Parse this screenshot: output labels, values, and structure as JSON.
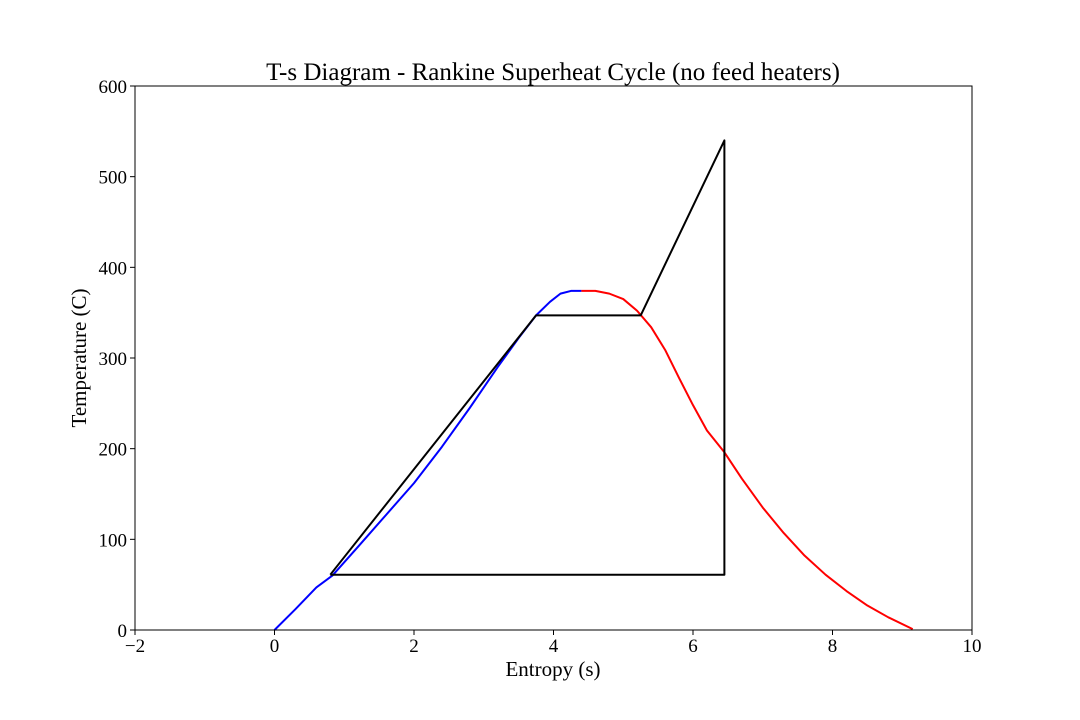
{
  "chart_data": {
    "type": "line",
    "title": "T-s Diagram - Rankine Superheat Cycle (no feed heaters)",
    "xlabel": "Entropy (s)",
    "ylabel": "Temperature (C)",
    "xlim": [
      -2,
      10
    ],
    "ylim": [
      0,
      600
    ],
    "xticks": [
      -2,
      0,
      2,
      4,
      6,
      8,
      10
    ],
    "xtick_labels": [
      "−2",
      "0",
      "2",
      "4",
      "6",
      "8",
      "10"
    ],
    "yticks": [
      0,
      100,
      200,
      300,
      400,
      500,
      600
    ],
    "ytick_labels": [
      "0",
      "100",
      "200",
      "300",
      "400",
      "500",
      "600"
    ],
    "grid": false,
    "series": [
      {
        "color": "#0000ff",
        "x": [
          0.0,
          0.3,
          0.6,
          0.83,
          1.2,
          1.6,
          2.0,
          2.4,
          2.8,
          3.2,
          3.5,
          3.75,
          3.95,
          4.1,
          4.25,
          4.4
        ],
        "y": [
          0,
          23,
          47,
          60,
          92,
          127,
          162,
          202,
          245,
          290,
          322,
          347,
          362,
          371,
          374,
          374
        ]
      },
      {
        "color": "#ff0000",
        "x": [
          4.4,
          4.6,
          4.8,
          5.0,
          5.2,
          5.4,
          5.6,
          5.8,
          6.0,
          6.2,
          6.45,
          6.7,
          7.0,
          7.3,
          7.6,
          7.9,
          8.2,
          8.5,
          8.8,
          9.15
        ],
        "y": [
          374,
          374,
          371,
          365,
          352,
          334,
          309,
          278,
          248,
          220,
          196,
          167,
          135,
          107,
          82,
          61,
          43,
          27,
          14,
          1
        ]
      },
      {
        "color": "#000000",
        "x": [
          0.8,
          6.45,
          6.45,
          5.25,
          3.75,
          0.8
        ],
        "y": [
          61,
          61,
          540,
          347,
          347,
          61
        ]
      }
    ]
  }
}
